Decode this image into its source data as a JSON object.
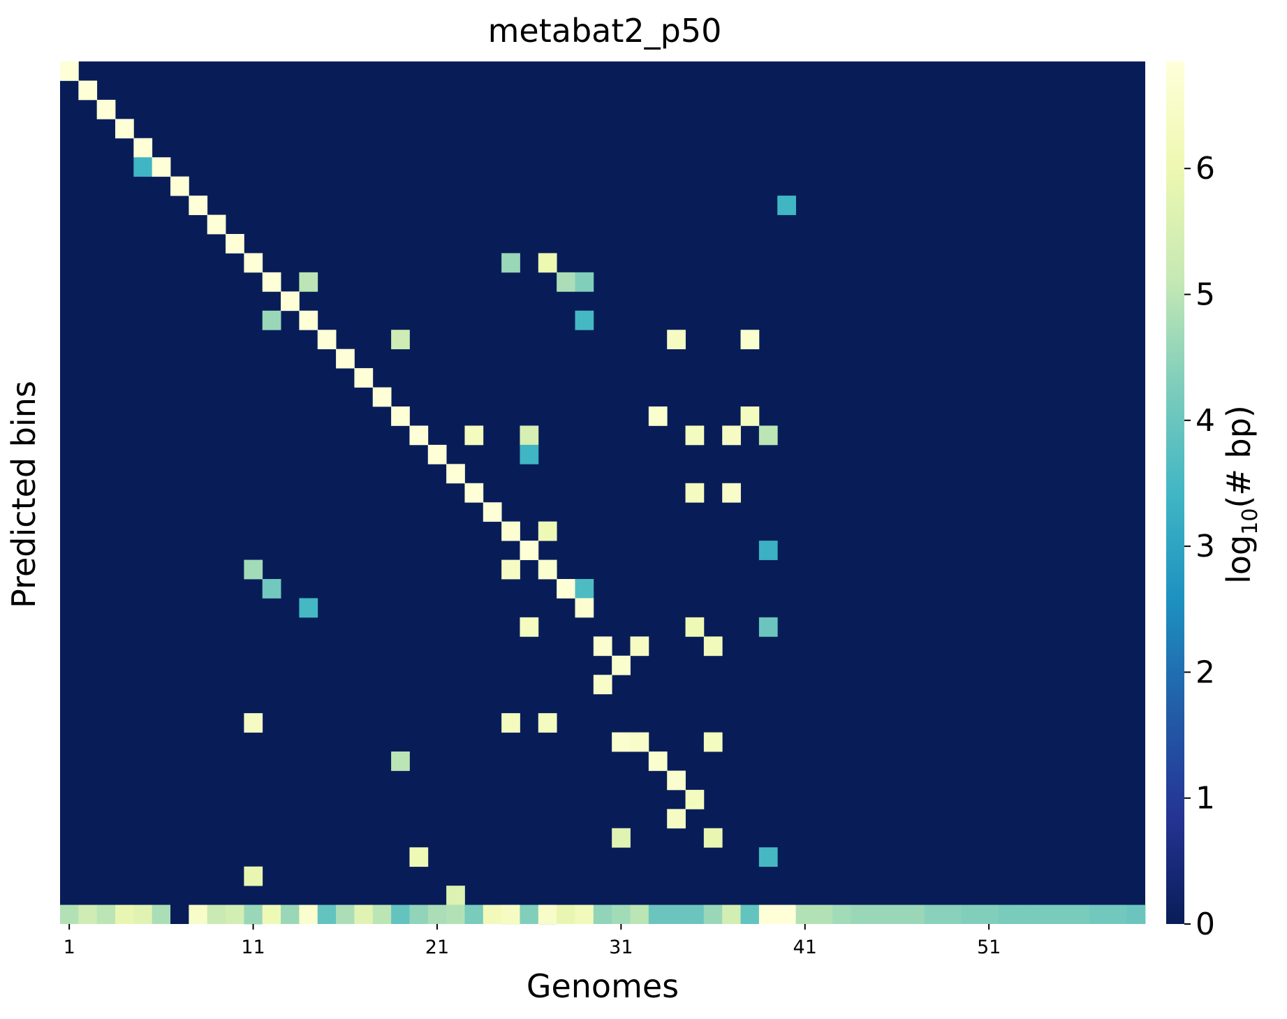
{
  "chart_data": {
    "type": "heatmap",
    "title": "metabat2_p50",
    "xlabel": "Genomes",
    "ylabel": "Predicted bins",
    "colorbar_label_base": "log",
    "colorbar_label_sub": "10",
    "colorbar_label_rest": "(# bp)",
    "colormap": "YlGnBu",
    "vlim": [
      0,
      6.85
    ],
    "n_cols": 59,
    "n_rows": 45,
    "xticks": [
      {
        "col": 1,
        "label": "1"
      },
      {
        "col": 11,
        "label": "11"
      },
      {
        "col": 21,
        "label": "21"
      },
      {
        "col": 31,
        "label": "31"
      },
      {
        "col": 41,
        "label": "41"
      },
      {
        "col": 51,
        "label": "51"
      }
    ],
    "cbar_ticks": [
      {
        "value": 0,
        "label": "0"
      },
      {
        "value": 1,
        "label": "1"
      },
      {
        "value": 2,
        "label": "2"
      },
      {
        "value": 3,
        "label": "3"
      },
      {
        "value": 4,
        "label": "4"
      },
      {
        "value": 5,
        "label": "5"
      },
      {
        "value": 6,
        "label": "6"
      }
    ],
    "cells": [
      [
        1,
        1,
        6.8
      ],
      [
        2,
        2,
        6.8
      ],
      [
        3,
        3,
        6.8
      ],
      [
        4,
        4,
        6.8
      ],
      [
        5,
        5,
        6.8
      ],
      [
        6,
        5,
        3.4
      ],
      [
        6,
        6,
        6.8
      ],
      [
        7,
        7,
        6.8
      ],
      [
        8,
        8,
        6.8
      ],
      [
        9,
        9,
        6.8
      ],
      [
        10,
        10,
        6.8
      ],
      [
        8,
        40,
        3.4
      ],
      [
        11,
        11,
        6.8
      ],
      [
        11,
        25,
        4.6
      ],
      [
        11,
        27,
        6.0
      ],
      [
        12,
        12,
        6.8
      ],
      [
        12,
        14,
        5.0
      ],
      [
        12,
        28,
        4.8
      ],
      [
        12,
        29,
        4.3
      ],
      [
        13,
        13,
        6.8
      ],
      [
        14,
        12,
        4.6
      ],
      [
        14,
        14,
        6.8
      ],
      [
        14,
        29,
        3.5
      ],
      [
        15,
        15,
        6.8
      ],
      [
        15,
        19,
        5.3
      ],
      [
        15,
        34,
        6.4
      ],
      [
        15,
        38,
        6.6
      ],
      [
        16,
        16,
        6.8
      ],
      [
        17,
        17,
        6.8
      ],
      [
        18,
        18,
        6.8
      ],
      [
        19,
        19,
        6.8
      ],
      [
        19,
        33,
        6.6
      ],
      [
        19,
        38,
        6.3
      ],
      [
        20,
        20,
        6.8
      ],
      [
        20,
        23,
        6.3
      ],
      [
        20,
        26,
        5.5
      ],
      [
        20,
        35,
        6.3
      ],
      [
        20,
        37,
        6.4
      ],
      [
        20,
        39,
        5.0
      ],
      [
        21,
        21,
        6.8
      ],
      [
        21,
        26,
        3.4
      ],
      [
        22,
        22,
        6.8
      ],
      [
        23,
        23,
        6.8
      ],
      [
        23,
        35,
        6.3
      ],
      [
        23,
        37,
        6.5
      ],
      [
        24,
        24,
        6.8
      ],
      [
        25,
        25,
        6.7
      ],
      [
        25,
        27,
        6.1
      ],
      [
        26,
        26,
        6.8
      ],
      [
        26,
        39,
        3.3
      ],
      [
        27,
        11,
        4.7
      ],
      [
        27,
        25,
        6.4
      ],
      [
        27,
        27,
        6.6
      ],
      [
        28,
        12,
        4.1
      ],
      [
        28,
        28,
        6.8
      ],
      [
        28,
        29,
        3.6
      ],
      [
        29,
        14,
        3.5
      ],
      [
        29,
        29,
        6.7
      ],
      [
        30,
        26,
        6.3
      ],
      [
        30,
        35,
        6.1
      ],
      [
        30,
        39,
        4.0
      ],
      [
        31,
        30,
        6.6
      ],
      [
        31,
        32,
        6.4
      ],
      [
        31,
        36,
        6.2
      ],
      [
        32,
        31,
        6.6
      ],
      [
        33,
        30,
        6.5
      ],
      [
        35,
        11,
        6.4
      ],
      [
        35,
        25,
        6.3
      ],
      [
        35,
        27,
        6.3
      ],
      [
        36,
        31,
        6.6
      ],
      [
        36,
        32,
        6.5
      ],
      [
        36,
        36,
        6.3
      ],
      [
        37,
        19,
        5.0
      ],
      [
        37,
        33,
        6.6
      ],
      [
        38,
        34,
        6.6
      ],
      [
        39,
        35,
        6.3
      ],
      [
        40,
        34,
        6.4
      ],
      [
        41,
        31,
        5.7
      ],
      [
        41,
        36,
        5.9
      ],
      [
        42,
        20,
        6.1
      ],
      [
        42,
        39,
        3.5
      ],
      [
        43,
        11,
        5.9
      ],
      [
        44,
        22,
        5.6
      ],
      [
        45,
        11,
        4.4
      ],
      [
        45,
        25,
        5.5
      ],
      [
        45,
        27,
        5.0
      ]
    ],
    "bottom_row": [
      4.9,
      5.3,
      5.0,
      5.9,
      5.7,
      4.8,
      0,
      6.5,
      5.2,
      5.4,
      4.6,
      6.1,
      4.6,
      6.6,
      3.9,
      4.8,
      5.7,
      5.0,
      3.9,
      4.5,
      4.8,
      4.9,
      4.2,
      6.2,
      6.4,
      4.3,
      6.5,
      5.9,
      6.2,
      4.5,
      4.7,
      5.0,
      4.0,
      4.0,
      4.0,
      4.6,
      5.4,
      3.9,
      6.8,
      6.8,
      4.9,
      4.9,
      4.7,
      4.6,
      4.6,
      4.6,
      4.6,
      4.4,
      4.4,
      4.3,
      4.3,
      4.2,
      4.2,
      4.2,
      4.2,
      4.2,
      4.1,
      4.1,
      4.0
    ]
  }
}
